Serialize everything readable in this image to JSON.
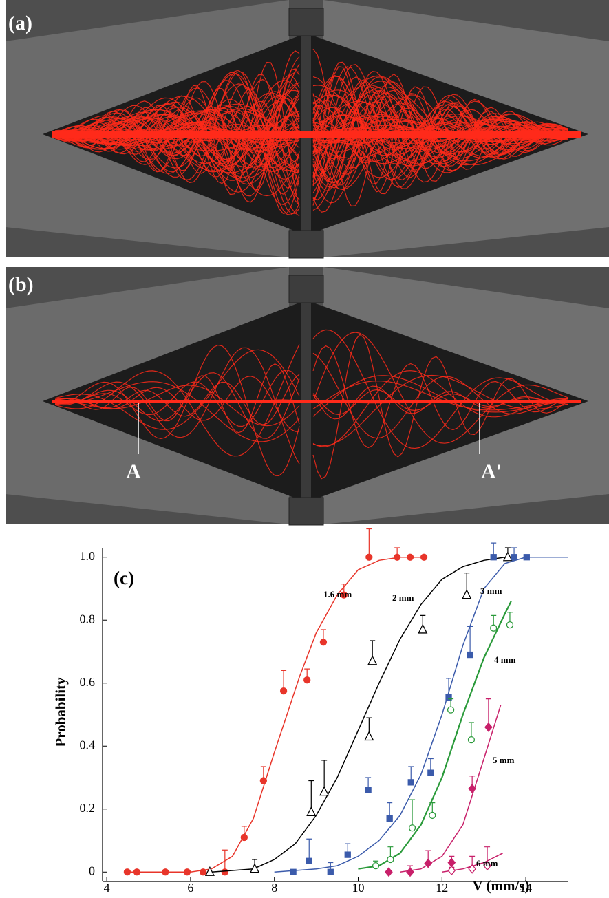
{
  "panels": [
    {
      "label": "(a)"
    },
    {
      "label": "(b)",
      "markers": [
        "A",
        "A'"
      ]
    }
  ],
  "chart_data": {
    "type": "scatter",
    "label": "(c)",
    "xlabel": "V (mm/s)",
    "ylabel": "Probability",
    "xlim": [
      3.9,
      15
    ],
    "ylim": [
      -0.03,
      1.03
    ],
    "xticks": [
      4,
      6,
      8,
      10,
      12,
      14
    ],
    "yticks": [
      0,
      0.2,
      0.4,
      0.6,
      0.8,
      {
        "value": 1,
        "label": "1.0"
      }
    ],
    "series": [
      {
        "name": "1.6 mm",
        "color": "#e8352a",
        "marker": "circle",
        "filled": true,
        "x": [
          4.49,
          4.72,
          5.4,
          5.92,
          6.3,
          6.82,
          7.28,
          7.74,
          8.22,
          8.78,
          9.17,
          9.66,
          10.26,
          10.93,
          11.24,
          11.57
        ],
        "values": [
          0,
          0,
          0,
          0,
          0,
          0,
          0.11,
          0.29,
          0.575,
          0.61,
          0.73,
          0.88,
          1,
          1,
          1,
          1
        ],
        "errors": [
          0,
          0,
          0,
          0,
          0,
          0.07,
          0.035,
          0.045,
          0.065,
          0.035,
          0.04,
          0.035,
          0.09,
          0.03,
          0,
          0
        ],
        "fit": {
          "x": [
            4.5,
            6,
            6.5,
            7,
            7.5,
            8,
            8.3,
            8.6,
            9,
            9.5,
            10,
            10.5,
            11,
            11.5
          ],
          "values": [
            0,
            0,
            0.01,
            0.05,
            0.17,
            0.38,
            0.5,
            0.62,
            0.76,
            0.88,
            0.96,
            0.99,
            1,
            1
          ]
        }
      },
      {
        "name": "2 mm",
        "color": "#000000",
        "marker": "triangle",
        "filled": false,
        "x": [
          6.46,
          7.53,
          8.88,
          9.19,
          10.26,
          10.34,
          11.54,
          12.59,
          13.57
        ],
        "values": [
          0,
          0.01,
          0.19,
          0.255,
          0.43,
          0.67,
          0.77,
          0.88,
          1
        ],
        "errors": [
          0,
          0.03,
          0.1,
          0.1,
          0.06,
          0.065,
          0.045,
          0.07,
          0.03
        ],
        "fit": {
          "x": [
            6.5,
            7.5,
            8,
            8.5,
            9,
            9.5,
            10,
            10.5,
            11,
            11.5,
            12,
            12.5,
            13,
            13.5
          ],
          "values": [
            0,
            0.01,
            0.04,
            0.09,
            0.18,
            0.3,
            0.45,
            0.6,
            0.74,
            0.85,
            0.93,
            0.97,
            0.99,
            1
          ]
        }
      },
      {
        "name": "3 mm",
        "color": "#3b5bab",
        "marker": "square",
        "filled": true,
        "x": [
          8.45,
          8.83,
          9.34,
          9.75,
          10.24,
          10.75,
          11.26,
          11.73,
          12.16,
          12.67,
          13.23,
          13.72,
          14.02
        ],
        "values": [
          0,
          0.035,
          0,
          0.055,
          0.26,
          0.17,
          0.285,
          0.315,
          0.555,
          0.69,
          1,
          1,
          1
        ],
        "errors": [
          0,
          0.07,
          0.03,
          0.035,
          0.04,
          0.05,
          0.05,
          0.045,
          0.06,
          0.09,
          0.045,
          0.03,
          0
        ],
        "fit": {
          "x": [
            8,
            9,
            9.5,
            10,
            10.5,
            11,
            11.5,
            12,
            12.5,
            13,
            13.5,
            14,
            15
          ],
          "values": [
            0,
            0.01,
            0.02,
            0.05,
            0.1,
            0.18,
            0.31,
            0.5,
            0.72,
            0.9,
            0.98,
            1,
            1
          ]
        }
      },
      {
        "name": "4 mm",
        "color": "#2a9a3a",
        "marker": "circle",
        "filled": false,
        "x": [
          10.42,
          10.77,
          11.29,
          11.77,
          12.21,
          12.7,
          13.23,
          13.62
        ],
        "values": [
          0.02,
          0.04,
          0.14,
          0.18,
          0.515,
          0.42,
          0.775,
          0.785
        ],
        "errors": [
          0.015,
          0.04,
          0.09,
          0.04,
          0.035,
          0.055,
          0.04,
          0.04
        ],
        "fit": {
          "x": [
            10,
            10.5,
            11,
            11.5,
            12,
            12.5,
            13,
            13.5,
            13.65
          ],
          "values": [
            0.01,
            0.02,
            0.06,
            0.15,
            0.3,
            0.5,
            0.68,
            0.82,
            0.86
          ]
        }
      },
      {
        "name": "5 mm",
        "color": "#c8206a",
        "marker": "diamond",
        "filled": true,
        "x": [
          10.73,
          11.24,
          11.67,
          12.23,
          12.72,
          13.11
        ],
        "values": [
          0,
          0,
          0.028,
          0.03,
          0.265,
          0.46
        ],
        "errors": [
          0,
          0.02,
          0.04,
          0.02,
          0.04,
          0.09
        ],
        "fit": {
          "x": [
            11,
            11.5,
            12,
            12.5,
            13,
            13.4
          ],
          "values": [
            0,
            0.01,
            0.05,
            0.15,
            0.36,
            0.53
          ]
        }
      },
      {
        "name": "6 mm",
        "color": "#c8206a",
        "marker": "diamond",
        "filled": false,
        "x": [
          12.23,
          12.72,
          13.08
        ],
        "values": [
          0.005,
          0.01,
          0.02
        ],
        "errors": [
          0.01,
          0.04,
          0.06
        ],
        "fit": {
          "x": [
            12,
            12.5,
            13,
            13.45
          ],
          "values": [
            0,
            0.01,
            0.03,
            0.06
          ]
        }
      }
    ]
  }
}
